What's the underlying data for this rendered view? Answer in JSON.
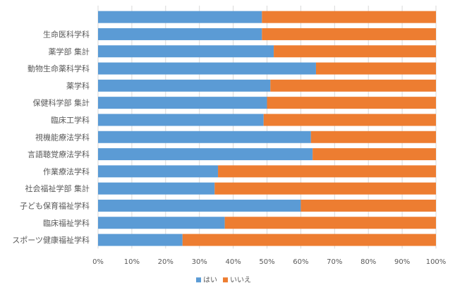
{
  "chart_data": {
    "type": "bar",
    "orientation": "horizontal",
    "stacked": "percent",
    "categories": [
      "",
      "生命医科学科",
      "薬学部 集計",
      "動物生命薬科学科",
      "薬学科",
      "保健科学部 集計",
      "臨床工学科",
      "視機能療法学科",
      "言語聴覚療法学科",
      "作業療法学科",
      "社会福祉学部 集計",
      "子ども保育福祉学科",
      "臨床福祉学科",
      "スポーツ健康福祉学科"
    ],
    "series": [
      {
        "name": "はい",
        "color": "#5b9bd5",
        "values": [
          48.5,
          48.5,
          52,
          64.5,
          51,
          50,
          49,
          63,
          63.5,
          35.5,
          34.5,
          60,
          37.5,
          25
        ]
      },
      {
        "name": "いいえ",
        "color": "#ed7d31",
        "values": [
          51.5,
          51.5,
          48,
          35.5,
          49,
          50,
          51,
          37,
          36.5,
          64.5,
          65.5,
          40,
          62.5,
          75
        ]
      }
    ],
    "xlim": [
      0,
      100
    ],
    "x_ticks": [
      "0%",
      "10%",
      "20%",
      "30%",
      "40%",
      "50%",
      "60%",
      "70%",
      "80%",
      "90%",
      "100%"
    ],
    "grid": true,
    "legend": {
      "position": "bottom"
    }
  }
}
